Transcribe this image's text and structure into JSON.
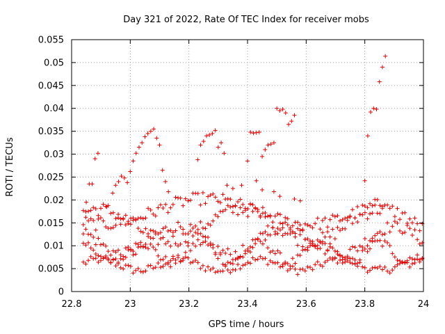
{
  "chart_data": {
    "type": "scatter",
    "title": "Day 321 of 2022, Rate Of TEC Index for receiver mobs",
    "xlabel": "GPS time / hours",
    "ylabel": "ROTI / TECUs",
    "xlim": [
      22.8,
      24
    ],
    "ylim": [
      0,
      0.055
    ],
    "xticks": [
      22.8,
      23,
      23.2,
      23.4,
      23.6,
      23.8,
      24
    ],
    "xtick_labels": [
      "22.8",
      "23",
      "23.2",
      "23.4",
      "23.6",
      "23.8",
      "24"
    ],
    "yticks": [
      0,
      0.005,
      0.01,
      0.015,
      0.02,
      0.025,
      0.03,
      0.035,
      0.04,
      0.045,
      0.05,
      0.055
    ],
    "ytick_labels": [
      "0",
      "0.005",
      "0.01",
      "0.015",
      "0.02",
      "0.025",
      "0.03",
      "0.035",
      "0.04",
      "0.045",
      "0.05",
      "0.055"
    ],
    "grid": true,
    "marker": "+",
    "color": "#e00000",
    "bands": [
      {
        "name": "band-a",
        "x_start": 22.84,
        "x_end": 24.0,
        "step": 0.0085,
        "base": 0.0058,
        "amp": 0.0012,
        "freq": 23,
        "phase": 0.3,
        "jitter": 0.0009
      },
      {
        "name": "band-b",
        "x_start": 22.84,
        "x_end": 24.0,
        "step": 0.0085,
        "base": 0.0085,
        "amp": 0.0022,
        "freq": 31,
        "phase": 1.7,
        "jitter": 0.0011
      },
      {
        "name": "band-c",
        "x_start": 22.84,
        "x_end": 24.0,
        "step": 0.0085,
        "base": 0.0112,
        "amp": 0.003,
        "freq": 17,
        "phase": 2.4,
        "jitter": 0.0013
      },
      {
        "name": "band-d",
        "x_start": 22.84,
        "x_end": 24.0,
        "step": 0.0085,
        "base": 0.0145,
        "amp": 0.0035,
        "freq": 13,
        "phase": 0.9,
        "jitter": 0.0015
      },
      {
        "name": "band-e",
        "x_start": 22.84,
        "x_end": 23.86,
        "step": 0.0085,
        "base": 0.0175,
        "amp": 0.0028,
        "freq": 9,
        "phase": 4.1,
        "jitter": 0.0014
      }
    ],
    "highlight_points": [
      [
        22.85,
        0.0195
      ],
      [
        22.86,
        0.0235
      ],
      [
        22.87,
        0.0235
      ],
      [
        22.88,
        0.029
      ],
      [
        22.89,
        0.0302
      ],
      [
        22.92,
        0.0185
      ],
      [
        22.94,
        0.0215
      ],
      [
        22.95,
        0.0232
      ],
      [
        22.96,
        0.024
      ],
      [
        22.97,
        0.0252
      ],
      [
        22.98,
        0.0248
      ],
      [
        22.99,
        0.0238
      ],
      [
        23.0,
        0.0262
      ],
      [
        23.01,
        0.0285
      ],
      [
        23.02,
        0.0302
      ],
      [
        23.03,
        0.0315
      ],
      [
        23.04,
        0.0325
      ],
      [
        23.05,
        0.0338
      ],
      [
        23.06,
        0.0345
      ],
      [
        23.07,
        0.035
      ],
      [
        23.08,
        0.0355
      ],
      [
        23.09,
        0.0335
      ],
      [
        23.1,
        0.032
      ],
      [
        23.11,
        0.0265
      ],
      [
        23.12,
        0.024
      ],
      [
        23.13,
        0.0218
      ],
      [
        23.23,
        0.0288
      ],
      [
        23.24,
        0.032
      ],
      [
        23.25,
        0.0328
      ],
      [
        23.26,
        0.034
      ],
      [
        23.27,
        0.0342
      ],
      [
        23.28,
        0.0345
      ],
      [
        23.29,
        0.0352
      ],
      [
        23.3,
        0.0315
      ],
      [
        23.31,
        0.0325
      ],
      [
        23.32,
        0.0302
      ],
      [
        23.33,
        0.0232
      ],
      [
        23.35,
        0.0225
      ],
      [
        23.38,
        0.0232
      ],
      [
        23.4,
        0.0285
      ],
      [
        23.41,
        0.0348
      ],
      [
        23.42,
        0.0346
      ],
      [
        23.43,
        0.0347
      ],
      [
        23.44,
        0.0348
      ],
      [
        23.45,
        0.0295
      ],
      [
        23.46,
        0.031
      ],
      [
        23.47,
        0.032
      ],
      [
        23.48,
        0.0322
      ],
      [
        23.49,
        0.0325
      ],
      [
        23.5,
        0.04
      ],
      [
        23.51,
        0.0395
      ],
      [
        23.52,
        0.0398
      ],
      [
        23.53,
        0.039
      ],
      [
        23.54,
        0.0365
      ],
      [
        23.55,
        0.0372
      ],
      [
        23.56,
        0.0385
      ],
      [
        23.43,
        0.0242
      ],
      [
        23.45,
        0.0222
      ],
      [
        23.49,
        0.0218
      ],
      [
        23.51,
        0.0208
      ],
      [
        23.56,
        0.0202
      ],
      [
        23.58,
        0.0198
      ],
      [
        23.8,
        0.0242
      ],
      [
        23.81,
        0.034
      ],
      [
        23.82,
        0.0392
      ],
      [
        23.83,
        0.04
      ],
      [
        23.84,
        0.0398
      ],
      [
        23.85,
        0.0458
      ],
      [
        23.86,
        0.049
      ],
      [
        23.87,
        0.0514
      ]
    ]
  }
}
